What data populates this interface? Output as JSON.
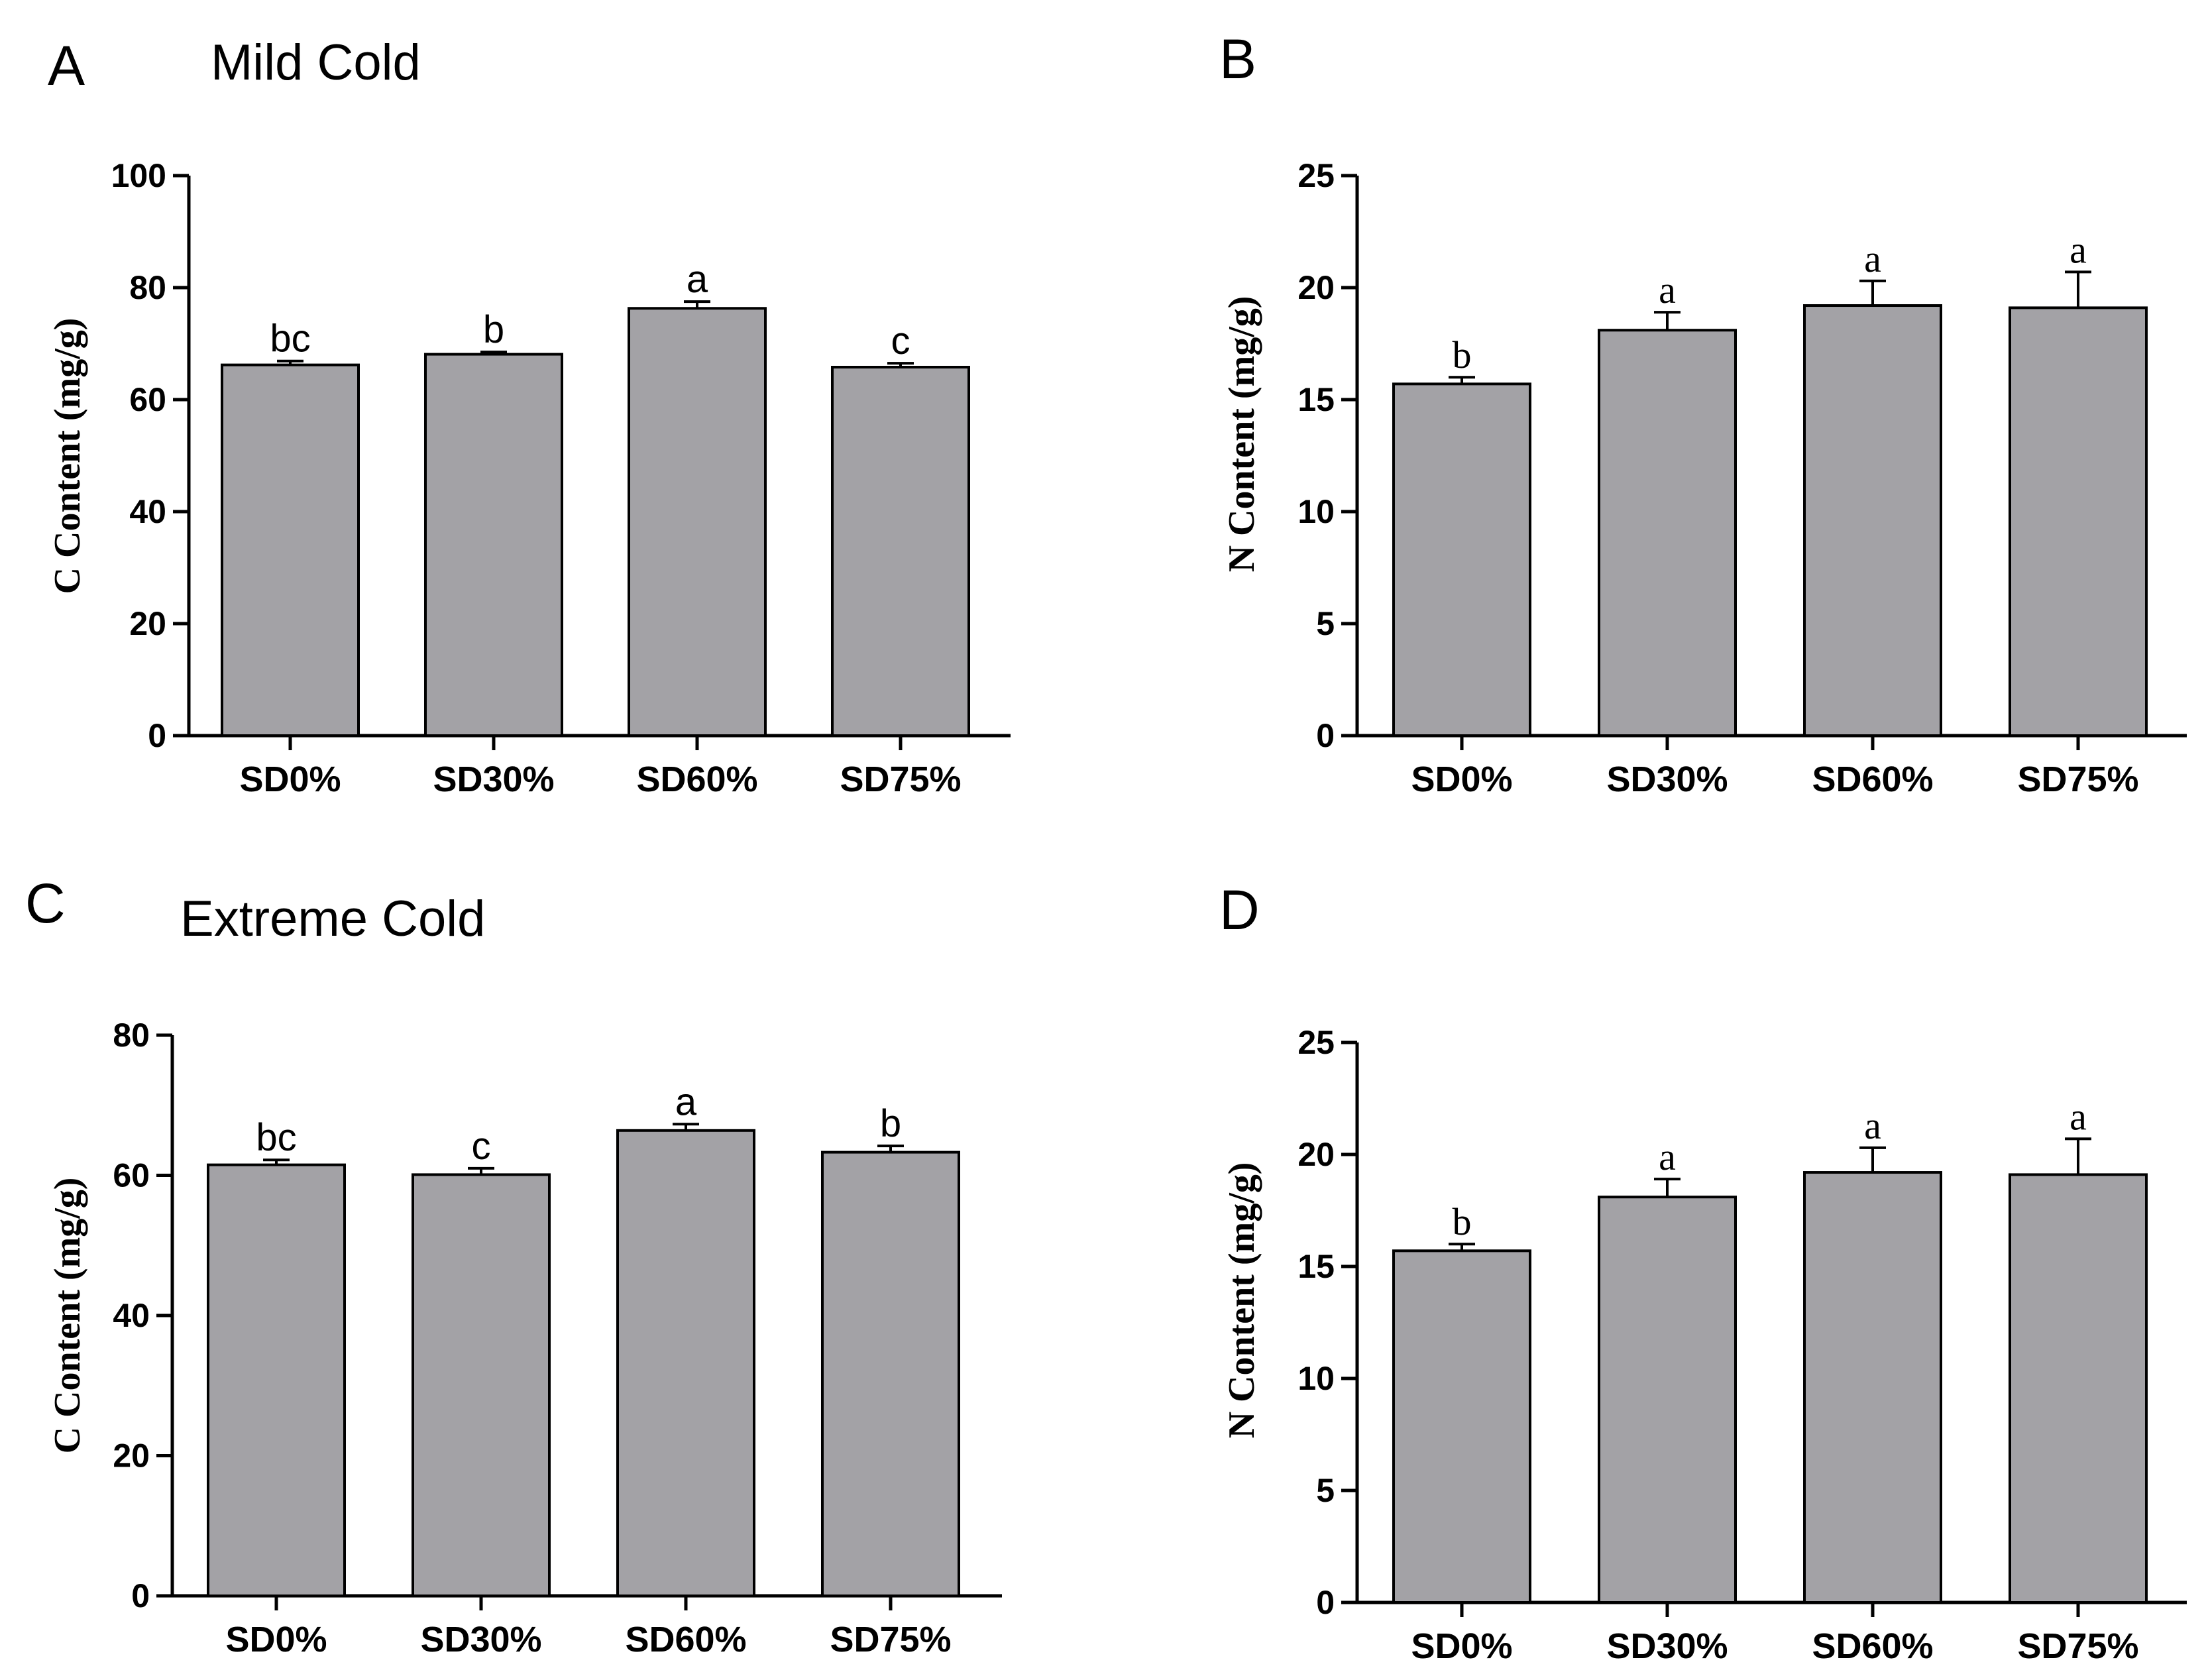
{
  "colors": {
    "bar_fill": "#a3a2a6",
    "axis": "#000000"
  },
  "chart_data": [
    {
      "panel": "A",
      "title": "Mild Cold",
      "type": "bar",
      "categories": [
        "SD0%",
        "SD30%",
        "SD60%",
        "SD75%"
      ],
      "values": [
        66.2,
        68.1,
        76.3,
        65.8
      ],
      "errors": [
        0.7,
        0.4,
        1.2,
        0.7
      ],
      "significance": [
        "bc",
        "b",
        "a",
        "c"
      ],
      "xlabel": "",
      "ylabel": "C Content (mg/g)",
      "ylim": [
        0,
        100
      ],
      "yticks": [
        0,
        20,
        40,
        60,
        80,
        100
      ]
    },
    {
      "panel": "B",
      "title": "",
      "type": "bar",
      "categories": [
        "SD0%",
        "SD30%",
        "SD60%",
        "SD75%"
      ],
      "values": [
        15.7,
        18.1,
        19.2,
        19.1
      ],
      "errors": [
        0.3,
        0.8,
        1.1,
        1.6
      ],
      "significance": [
        "b",
        "a",
        "a",
        "a"
      ],
      "xlabel": "",
      "ylabel": "N Content (mg/g)",
      "ylim": [
        0,
        25
      ],
      "yticks": [
        0,
        5,
        10,
        15,
        20,
        25
      ]
    },
    {
      "panel": "C",
      "title": "Extreme Cold",
      "type": "bar",
      "categories": [
        "SD0%",
        "SD30%",
        "SD60%",
        "SD75%"
      ],
      "values": [
        61.5,
        60.1,
        66.4,
        63.3
      ],
      "errors": [
        0.7,
        0.9,
        0.9,
        0.9
      ],
      "significance": [
        "bc",
        "c",
        "a",
        "b"
      ],
      "xlabel": "",
      "ylabel": "C Content (mg/g)",
      "ylim": [
        0,
        80
      ],
      "yticks": [
        0,
        20,
        40,
        60,
        80
      ]
    },
    {
      "panel": "D",
      "title": "",
      "type": "bar",
      "categories": [
        "SD0%",
        "SD30%",
        "SD60%",
        "SD75%"
      ],
      "values": [
        15.7,
        18.1,
        19.2,
        19.1
      ],
      "errors": [
        0.3,
        0.8,
        1.1,
        1.6
      ],
      "significance": [
        "b",
        "a",
        "a",
        "a"
      ],
      "xlabel": "",
      "ylabel": "N Content (mg/g)",
      "ylim": [
        0,
        25
      ],
      "yticks": [
        0,
        5,
        10,
        15,
        20,
        25
      ]
    }
  ]
}
